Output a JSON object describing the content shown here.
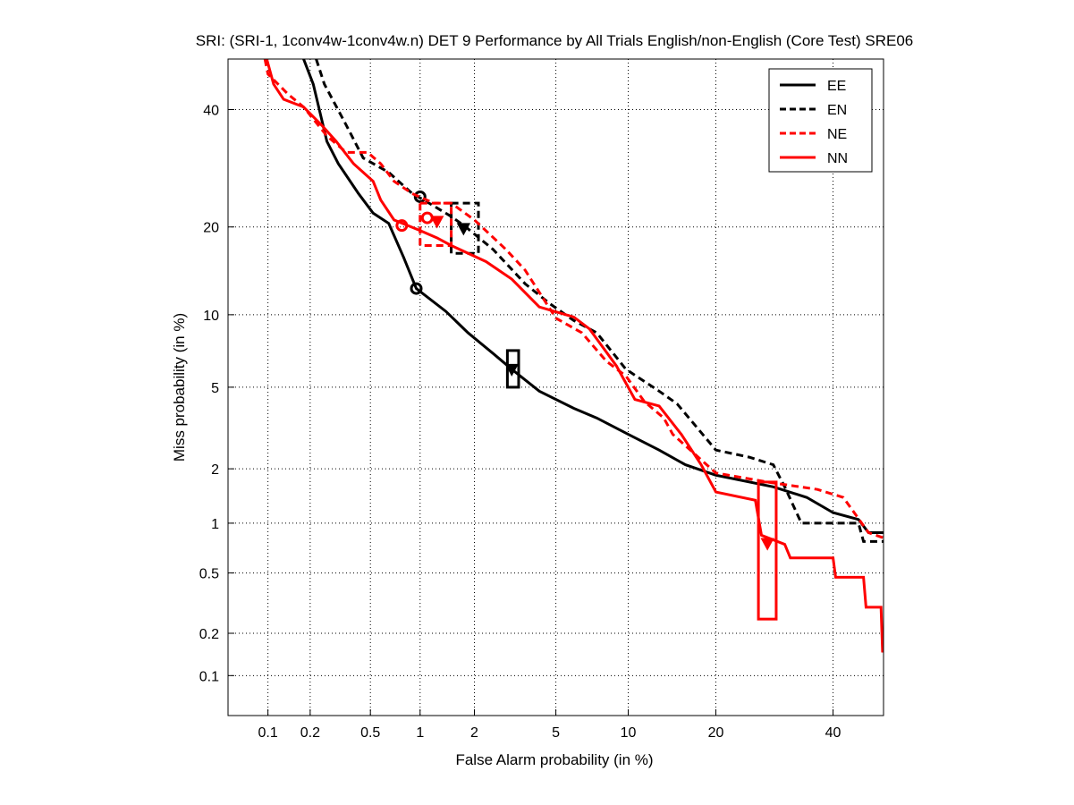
{
  "chart_data": {
    "type": "line",
    "title": "SRI: (SRI-1, 1conv4w-1conv4w.n) DET 9 Performance by All Trials English/non-English (Core Test) SRE06",
    "xlabel": "False Alarm probability (in %)",
    "ylabel": "Miss probability (in %)",
    "xscale": "probit",
    "yscale": "probit",
    "xlim": [
      0.05,
      50
    ],
    "ylim": [
      0.05,
      50
    ],
    "grid": true,
    "legend_position": "top-right",
    "xticks": [
      0.1,
      0.2,
      0.5,
      1,
      2,
      5,
      10,
      20,
      40
    ],
    "xtick_labels": [
      "0.1",
      "0.2",
      "0.5",
      "1",
      "2",
      "5",
      "10",
      "20",
      "40"
    ],
    "yticks": [
      0.1,
      0.2,
      0.5,
      1,
      2,
      5,
      10,
      20,
      40
    ],
    "ytick_labels": [
      "0.1",
      "0.2",
      "0.5",
      "1",
      "2",
      "5",
      "10",
      "20",
      "40"
    ],
    "series": [
      {
        "name": "EE",
        "color": "#000000",
        "style": "solid",
        "points": [
          [
            0.18,
            50
          ],
          [
            0.21,
            45
          ],
          [
            0.26,
            34
          ],
          [
            0.31,
            30
          ],
          [
            0.42,
            25
          ],
          [
            0.52,
            22
          ],
          [
            0.65,
            20.5
          ],
          [
            0.8,
            16
          ],
          [
            0.95,
            12.5
          ],
          [
            1.4,
            10.3
          ],
          [
            1.85,
            8.5
          ],
          [
            2.5,
            7
          ],
          [
            3.1,
            6
          ],
          [
            4.2,
            4.8
          ],
          [
            6,
            4
          ],
          [
            7.5,
            3.6
          ],
          [
            10,
            3
          ],
          [
            13,
            2.5
          ],
          [
            16,
            2.1
          ],
          [
            20,
            1.85
          ],
          [
            29,
            1.6
          ],
          [
            35,
            1.4
          ],
          [
            40,
            1.15
          ],
          [
            45,
            1.05
          ],
          [
            47,
            0.88
          ],
          [
            50,
            0.88
          ]
        ],
        "min_marker": [
          0.95,
          12.5
        ],
        "act_marker": [
          3.1,
          6
        ],
        "box": [
          2.95,
          3.35,
          5,
          7.2
        ]
      },
      {
        "name": "EN",
        "color": "#000000",
        "style": "dashed",
        "points": [
          [
            0.22,
            50
          ],
          [
            0.25,
            45
          ],
          [
            0.35,
            37
          ],
          [
            0.45,
            31
          ],
          [
            0.65,
            28.5
          ],
          [
            0.9,
            25
          ],
          [
            1.05,
            24
          ],
          [
            1.5,
            21.5
          ],
          [
            1.8,
            20
          ],
          [
            2.5,
            17
          ],
          [
            3.6,
            13
          ],
          [
            4.7,
            11
          ],
          [
            6,
            9.5
          ],
          [
            7.5,
            8.5
          ],
          [
            9.8,
            6
          ],
          [
            13,
            4.8
          ],
          [
            15,
            4.2
          ],
          [
            20,
            2.5
          ],
          [
            25,
            2.3
          ],
          [
            29,
            2.1
          ],
          [
            31,
            1.6
          ],
          [
            34,
            1.0
          ],
          [
            45,
            1.0
          ],
          [
            46,
            0.78
          ],
          [
            50,
            0.78
          ]
        ],
        "min_marker": [
          1.0,
          24.5
        ],
        "act_marker": [
          1.75,
          19.8
        ],
        "box": [
          1.5,
          2.1,
          16.5,
          23.5
        ]
      },
      {
        "name": "NE",
        "color": "#ff0000",
        "style": "dashed",
        "points": [
          [
            0.095,
            50
          ],
          [
            0.1,
            47
          ],
          [
            0.14,
            43
          ],
          [
            0.18,
            40.5
          ],
          [
            0.26,
            35
          ],
          [
            0.35,
            32
          ],
          [
            0.48,
            32
          ],
          [
            0.58,
            30
          ],
          [
            0.7,
            27
          ],
          [
            0.9,
            25
          ],
          [
            1.2,
            23.5
          ],
          [
            1.5,
            23.5
          ],
          [
            2,
            21
          ],
          [
            2.9,
            17
          ],
          [
            3.6,
            14.5
          ],
          [
            5,
            9.7
          ],
          [
            6.5,
            8.5
          ],
          [
            8.2,
            6.5
          ],
          [
            9.8,
            5.6
          ],
          [
            11.5,
            4.3
          ],
          [
            13.5,
            3.6
          ],
          [
            14.5,
            3.0
          ],
          [
            20,
            1.9
          ],
          [
            28,
            1.7
          ],
          [
            37,
            1.55
          ],
          [
            42,
            1.4
          ],
          [
            47,
            0.88
          ],
          [
            50,
            0.82
          ]
        ],
        "min_marker": [
          1.1,
          21.3
        ],
        "act_marker": [
          1.25,
          20.8
        ],
        "box": [
          1.0,
          1.5,
          17.5,
          23.5
        ]
      },
      {
        "name": "NN",
        "color": "#ff0000",
        "style": "solid",
        "points": [
          [
            0.098,
            50
          ],
          [
            0.11,
            45
          ],
          [
            0.13,
            42
          ],
          [
            0.18,
            40.5
          ],
          [
            0.24,
            37
          ],
          [
            0.3,
            34
          ],
          [
            0.39,
            30
          ],
          [
            0.52,
            27
          ],
          [
            0.58,
            24
          ],
          [
            0.7,
            21
          ],
          [
            1.0,
            19.5
          ],
          [
            1.25,
            18.5
          ],
          [
            1.5,
            17.5
          ],
          [
            2.3,
            15.5
          ],
          [
            3.1,
            13.5
          ],
          [
            4.2,
            10.7
          ],
          [
            6,
            9.8
          ],
          [
            7,
            8.8
          ],
          [
            9,
            6.2
          ],
          [
            10.6,
            4.4
          ],
          [
            13,
            4.1
          ],
          [
            15.5,
            3.0
          ],
          [
            18,
            2.1
          ],
          [
            20,
            1.5
          ],
          [
            26,
            1.35
          ],
          [
            27,
            0.85
          ],
          [
            31,
            0.75
          ],
          [
            32,
            0.62
          ],
          [
            40,
            0.62
          ],
          [
            40.5,
            0.47
          ],
          [
            46,
            0.47
          ],
          [
            46.5,
            0.3
          ],
          [
            49.5,
            0.3
          ],
          [
            49.8,
            0.15
          ],
          [
            50,
            0.15
          ]
        ],
        "min_marker": [
          0.78,
          20.2
        ],
        "act_marker": [
          28,
          0.76
        ],
        "box": [
          26.5,
          29.5,
          0.25,
          1.7
        ]
      }
    ]
  }
}
